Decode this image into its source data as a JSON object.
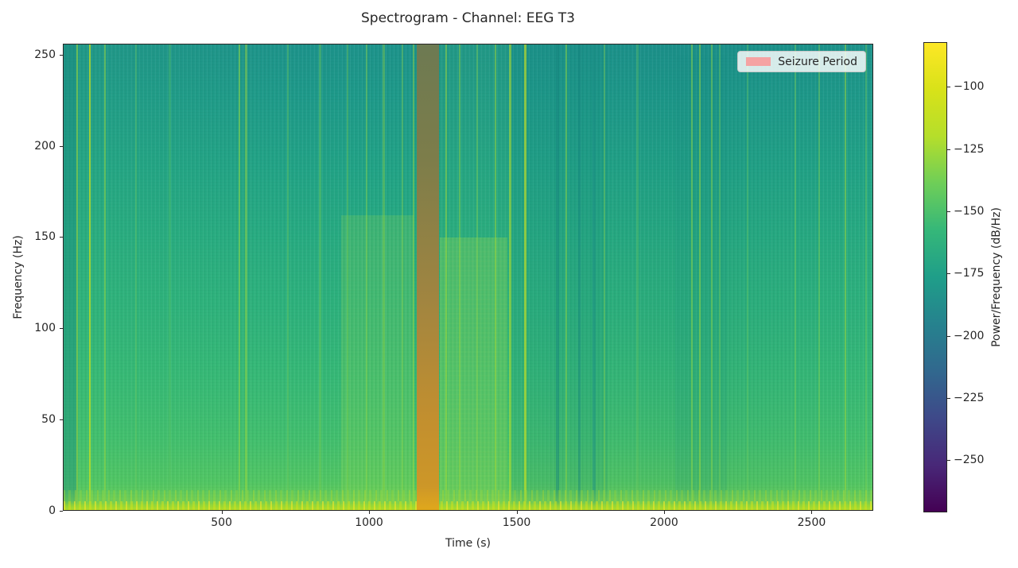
{
  "title": "Spectrogram - Channel: EEG T3",
  "legend": {
    "label": "Seizure Period",
    "swatch_color": "#f5a3a3"
  },
  "chart_data": {
    "type": "heatmap",
    "variant": "spectrogram",
    "title": "Spectrogram - Channel: EEG T3",
    "xlabel": "Time (s)",
    "ylabel": "Frequency (Hz)",
    "colorbar_label": "Power/Frequency (dB/Hz)",
    "colormap": "viridis",
    "x_view_range_s": [
      -38,
      2709
    ],
    "y_view_range_hz": [
      0,
      256
    ],
    "color_scale_db": [
      -271,
      -82
    ],
    "x_ticks_s": [
      500,
      1000,
      1500,
      2000,
      2500
    ],
    "y_ticks_hz": [
      0,
      50,
      100,
      150,
      200,
      250
    ],
    "colorbar_ticks_db": [
      -100,
      -125,
      -150,
      -175,
      -200,
      -225,
      -250
    ],
    "legend_entries": [
      "Seizure Period"
    ],
    "seizure_period_s": [
      1160,
      1237
    ],
    "seizure_overlay": {
      "color": "red",
      "alpha": 0.3
    },
    "mean_power_profile": [
      {
        "freq_hz": 0,
        "power_db": -95
      },
      {
        "freq_hz": 5,
        "power_db": -108
      },
      {
        "freq_hz": 20,
        "power_db": -130
      },
      {
        "freq_hz": 50,
        "power_db": -141
      },
      {
        "freq_hz": 100,
        "power_db": -150
      },
      {
        "freq_hz": 150,
        "power_db": -159
      },
      {
        "freq_hz": 200,
        "power_db": -168
      },
      {
        "freq_hz": 256,
        "power_db": -180
      }
    ],
    "features": [
      "Bright high-power band below ~10 Hz across the whole recording (~ -95 to -110 dB/Hz)",
      "Seizure period shaded with translucent red from ~1160 s to ~1237 s; underlying power elevated across all frequencies",
      "Elevated, speckled broadband power ~905-1150 s below ~160 Hz",
      "Strongly elevated power ~1240-1470 s below ~150 Hz (post-seizure)",
      "Darker low-power columns ~1480-1810 s",
      "Narrow transient bursts near t = 6, 49, 555, 1527, 2093-2162, 2615 s",
      "Power decreases smoothly with frequency: green at low/mid frequencies, teal near 256 Hz"
    ]
  },
  "texture": {
    "streaks": [
      {
        "t": 6,
        "w": 2,
        "c": "#9ad93f",
        "o": 0.6
      },
      {
        "t": 49,
        "w": 2,
        "c": "#cfe31c",
        "o": 0.7
      },
      {
        "t": 99,
        "w": 2,
        "c": "#9ad93f",
        "o": 0.5
      },
      {
        "t": 206,
        "w": 2,
        "c": "#6ecb5c",
        "o": 0.35
      },
      {
        "t": 319,
        "w": 3,
        "c": "#5cc763",
        "o": 0.3
      },
      {
        "t": 555,
        "w": 2,
        "c": "#8ed744",
        "o": 0.55
      },
      {
        "t": 577,
        "w": 3,
        "c": "#a9dc33",
        "o": 0.4
      },
      {
        "t": 720,
        "w": 2,
        "c": "#6ecb5c",
        "o": 0.4
      },
      {
        "t": 830,
        "w": 3,
        "c": "#7ed14f",
        "o": 0.35
      },
      {
        "t": 923,
        "w": 2,
        "c": "#8ed744",
        "o": 0.3
      },
      {
        "t": 989,
        "w": 2,
        "c": "#8ed744",
        "o": 0.4
      },
      {
        "t": 1044,
        "w": 3,
        "c": "#9fd93b",
        "o": 0.35
      },
      {
        "t": 1110,
        "w": 2,
        "c": "#8ed744",
        "o": 0.35
      },
      {
        "t": 1148,
        "w": 2,
        "c": "#a9dc33",
        "o": 0.4
      },
      {
        "t": 1258,
        "w": 2,
        "c": "#a9dc33",
        "o": 0.45
      },
      {
        "t": 1305,
        "w": 2,
        "c": "#9fd93b",
        "o": 0.4
      },
      {
        "t": 1365,
        "w": 2,
        "c": "#8ed744",
        "o": 0.35
      },
      {
        "t": 1426,
        "w": 2,
        "c": "#a9dc33",
        "o": 0.45
      },
      {
        "t": 1475,
        "w": 3,
        "c": "#b5de2b",
        "o": 0.55
      },
      {
        "t": 1527,
        "w": 3,
        "c": "#cfe31c",
        "o": 0.6
      },
      {
        "t": 1634,
        "w": 4,
        "c": "#15827c",
        "o": 0.45
      },
      {
        "t": 1667,
        "w": 2,
        "c": "#8ed744",
        "o": 0.5
      },
      {
        "t": 1709,
        "w": 3,
        "c": "#15827c",
        "o": 0.4
      },
      {
        "t": 1758,
        "w": 4,
        "c": "#1b8e86",
        "o": 0.45
      },
      {
        "t": 1796,
        "w": 2,
        "c": "#8ed744",
        "o": 0.35
      },
      {
        "t": 1906,
        "w": 3,
        "c": "#6ecb5c",
        "o": 0.3
      },
      {
        "t": 2093,
        "w": 2,
        "c": "#8ed744",
        "o": 0.5
      },
      {
        "t": 2120,
        "w": 2,
        "c": "#a9dc33",
        "o": 0.45
      },
      {
        "t": 2162,
        "w": 2,
        "c": "#8ed744",
        "o": 0.45
      },
      {
        "t": 2189,
        "w": 2,
        "c": "#7ed14f",
        "o": 0.35
      },
      {
        "t": 2282,
        "w": 2,
        "c": "#6ecb5c",
        "o": 0.35
      },
      {
        "t": 2445,
        "w": 2,
        "c": "#7ed14f",
        "o": 0.4
      },
      {
        "t": 2524,
        "w": 2,
        "c": "#8ed744",
        "o": 0.35
      },
      {
        "t": 2615,
        "w": 2,
        "c": "#9fd93b",
        "o": 0.5
      },
      {
        "t": 2686,
        "w": 2,
        "c": "#7ed14f",
        "o": 0.35
      }
    ],
    "regions": [
      {
        "t0": -38,
        "t1": 10,
        "top_hz": 256,
        "c": "#17867f",
        "o": 0.4,
        "speckle": false
      },
      {
        "t0": 905,
        "t1": 1150,
        "top_hz": 162,
        "c": "#8ed744",
        "o": 0.2,
        "speckle": true
      },
      {
        "t0": 1240,
        "t1": 1468,
        "top_hz": 150,
        "c": "#7ed14f",
        "o": 0.38,
        "speckle": true
      },
      {
        "t0": 1240,
        "t1": 1468,
        "top_hz": 256,
        "c": "#49c06b",
        "o": 0.12,
        "speckle": false
      },
      {
        "t0": 1480,
        "t1": 1810,
        "top_hz": 256,
        "c": "#17867f",
        "o": 0.14,
        "speckle": false
      },
      {
        "t0": 2040,
        "t1": 2215,
        "top_hz": 250,
        "c": "#1b8e86",
        "o": 0.12,
        "speckle": false
      }
    ]
  }
}
